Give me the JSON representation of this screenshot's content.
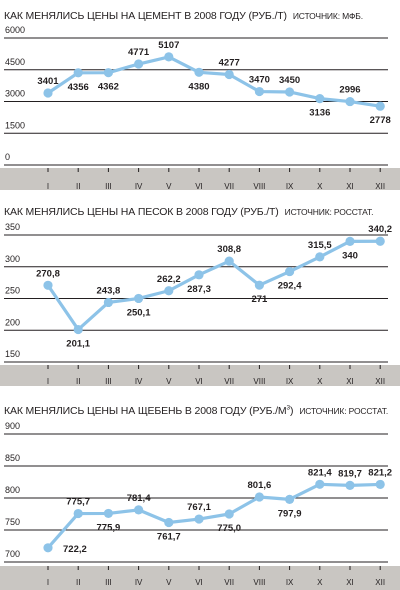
{
  "chart_data": [
    {
      "type": "line",
      "title": "КАК МЕНЯЛИСЬ ЦЕНЫ НА ЦЕМЕНТ В 2008 ГОДУ (РУБ./Т)",
      "source": "ИСТОЧНИК: МФБ.",
      "categories": [
        "I",
        "II",
        "III",
        "IV",
        "V",
        "VI",
        "VII",
        "VIII",
        "IX",
        "X",
        "XI",
        "XII"
      ],
      "values": [
        3401,
        4356,
        4362,
        4771,
        5107,
        4380,
        4277,
        3470,
        3450,
        3136,
        2996,
        2778
      ],
      "labels": [
        "3401",
        "4356",
        "4362",
        "4771",
        "5107",
        "4380",
        "4277",
        "3470",
        "3450",
        "3136",
        "2996",
        "2778"
      ],
      "label_pos": [
        "above",
        "below",
        "below",
        "above",
        "above",
        "below",
        "above",
        "above",
        "above",
        "below",
        "above",
        "below"
      ],
      "yticks": [
        "0",
        "1500",
        "3000",
        "4500",
        "6000"
      ],
      "ytick_values": [
        0,
        1500,
        3000,
        4500,
        6000
      ],
      "ylim": [
        0,
        6000
      ],
      "xlabel": "",
      "ylabel": "",
      "grid": "horizontal",
      "colors": {
        "line": "#8dc3e8",
        "marker": "#8dc3e8",
        "grid": "#231f20",
        "axis_band": "#c9c6c2"
      }
    },
    {
      "type": "line",
      "title": "КАК МЕНЯЛИСЬ ЦЕНЫ НА ПЕСОК В 2008 ГОДУ (РУБ./Т)",
      "source": "ИСТОЧНИК: РОССТАТ.",
      "categories": [
        "I",
        "II",
        "III",
        "IV",
        "V",
        "VI",
        "VII",
        "VIII",
        "IX",
        "X",
        "XI",
        "XII"
      ],
      "values": [
        270.8,
        201.1,
        243.8,
        250.1,
        262.2,
        287.3,
        308.8,
        271,
        292.4,
        315.5,
        340,
        340.2
      ],
      "labels": [
        "270,8",
        "201,1",
        "243,8",
        "250,1",
        "262,2",
        "287,3",
        "308,8",
        "271",
        "292,4",
        "315,5",
        "340",
        "340,2"
      ],
      "label_pos": [
        "above",
        "below",
        "above",
        "below",
        "above",
        "below",
        "above",
        "below",
        "below",
        "above",
        "below",
        "above"
      ],
      "yticks": [
        "150",
        "200",
        "250",
        "300",
        "350"
      ],
      "ytick_values": [
        150,
        200,
        250,
        300,
        350
      ],
      "ylim": [
        150,
        350
      ],
      "xlabel": "",
      "ylabel": "",
      "grid": "horizontal",
      "colors": {
        "line": "#8dc3e8",
        "marker": "#8dc3e8",
        "grid": "#231f20",
        "axis_band": "#c9c6c2"
      }
    },
    {
      "type": "line",
      "title": "КАК МЕНЯЛИСЬ ЦЕНЫ НА ЩЕБЕНЬ В 2008 ГОДУ (РУБ./М",
      "title_sup": "3",
      "title_end": ")",
      "source": "ИСТОЧНИК: РОССТАТ.",
      "categories": [
        "I",
        "II",
        "III",
        "IV",
        "V",
        "VI",
        "VII",
        "VIII",
        "IX",
        "X",
        "XI",
        "XII"
      ],
      "values": [
        722.2,
        775.7,
        775.9,
        781.4,
        761.7,
        767.1,
        775.0,
        801.6,
        797.9,
        821.4,
        819.7,
        821.2
      ],
      "labels": [
        "722,2",
        "775,7",
        "775,9",
        "781,4",
        "761,7",
        "767,1",
        "775,0",
        "801,6",
        "797,9",
        "821,4",
        "819,7",
        "821,2"
      ],
      "label_pos": [
        "right",
        "above",
        "below",
        "above",
        "below",
        "above",
        "below",
        "above",
        "below",
        "above",
        "above",
        "above"
      ],
      "yticks": [
        "700",
        "750",
        "800",
        "850",
        "900"
      ],
      "ytick_values": [
        700,
        750,
        800,
        850,
        900
      ],
      "ylim": [
        700,
        900
      ],
      "xlabel": "",
      "ylabel": "",
      "grid": "horizontal",
      "colors": {
        "line": "#8dc3e8",
        "marker": "#8dc3e8",
        "grid": "#231f20",
        "axis_band": "#c9c6c2"
      }
    }
  ]
}
